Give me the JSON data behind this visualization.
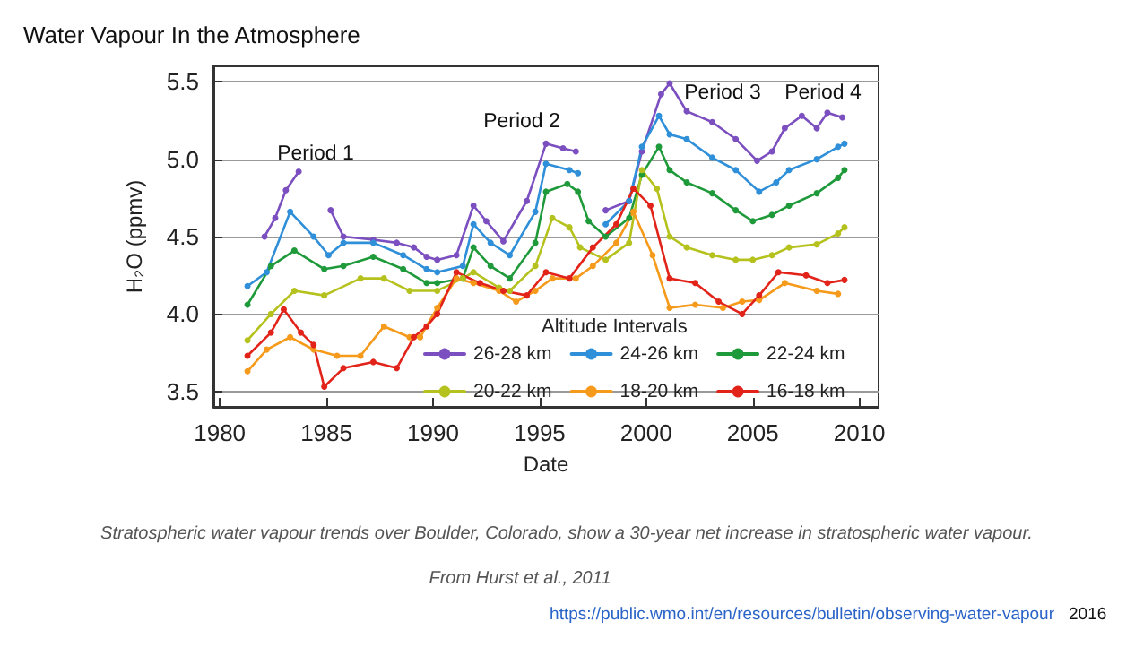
{
  "chart_data": {
    "type": "line",
    "title": "Water Vapour In the Atmosphere",
    "xlabel": "Date",
    "ylabel": "H₂O (ppmv)",
    "legend_title": "Altitude Intervals",
    "xlim": [
      1979.7,
      2010.9
    ],
    "xticks": [
      1980,
      1985,
      1990,
      1995,
      2000,
      2005,
      2010
    ],
    "ylim": [
      3.4,
      5.6
    ],
    "yticks": [
      3.5,
      {
        "value": 4,
        "label": "4.0"
      },
      4.5,
      {
        "value": 5,
        "label": "5.0"
      },
      5.5
    ],
    "grid": "y",
    "legend": "bottom",
    "marker": "circle",
    "line_style": "solid",
    "series": [
      {
        "name": "26-28 km",
        "color": "#7b4fc0",
        "x": [
          1982.1,
          1982.6,
          1983.1,
          1983.7,
          null,
          1985.2,
          1985.8,
          1987.2,
          1988.3,
          1989.1,
          1989.7,
          1990.2,
          1991.1,
          1991.9,
          1992.5,
          1993.3,
          1994.4,
          1995.3,
          1996.1,
          1996.7,
          null,
          1998.1,
          1999.2,
          1999.8,
          2000.7,
          2001.1,
          2001.9,
          2003.1,
          2004.2,
          2005.2,
          2005.9,
          2006.5,
          2007.3,
          2008.0,
          2008.5,
          2009.2
        ],
        "values": [
          4.5,
          4.62,
          4.8,
          4.92,
          null,
          4.67,
          4.5,
          4.48,
          4.46,
          4.43,
          4.37,
          4.35,
          4.38,
          4.7,
          4.6,
          4.47,
          4.73,
          5.1,
          5.07,
          5.05,
          null,
          4.67,
          4.73,
          5.05,
          5.42,
          5.49,
          5.31,
          5.24,
          5.13,
          4.99,
          5.05,
          5.2,
          5.28,
          5.2,
          5.3,
          5.27
        ]
      },
      {
        "name": "24-26 km",
        "color": "#2f8fd8",
        "x": [
          1981.3,
          1982.2,
          1983.3,
          1984.4,
          1985.1,
          1985.8,
          1987.2,
          1988.6,
          1989.7,
          1990.2,
          1991.4,
          1991.9,
          1992.7,
          1993.6,
          1994.8,
          1995.3,
          1996.4,
          1996.8,
          null,
          1998.1,
          1999.2,
          1999.8,
          2000.6,
          2001.1,
          2001.9,
          2003.1,
          2004.2,
          2005.3,
          2006.1,
          2006.7,
          2008.0,
          2009.0,
          2009.3
        ],
        "values": [
          4.18,
          4.27,
          4.66,
          4.5,
          4.38,
          4.46,
          4.46,
          4.38,
          4.29,
          4.27,
          4.31,
          4.58,
          4.46,
          4.38,
          4.66,
          4.97,
          4.93,
          4.91,
          null,
          4.58,
          4.73,
          5.08,
          5.28,
          5.16,
          5.13,
          5.01,
          4.93,
          4.79,
          4.85,
          4.93,
          5.0,
          5.08,
          5.1
        ]
      },
      {
        "name": "22-24 km",
        "color": "#1f9a3a",
        "x": [
          1981.3,
          1982.4,
          1983.5,
          1984.9,
          1985.8,
          1987.2,
          1988.6,
          1989.7,
          1990.2,
          1991.4,
          1991.9,
          1992.7,
          1993.6,
          1994.8,
          1995.3,
          1996.3,
          1996.8,
          1997.3,
          1998.1,
          1999.2,
          1999.8,
          2000.6,
          2001.1,
          2001.9,
          2003.1,
          2004.2,
          2005.0,
          2005.9,
          2006.7,
          2008.0,
          2009.0,
          2009.3
        ],
        "values": [
          4.06,
          4.31,
          4.41,
          4.29,
          4.31,
          4.37,
          4.29,
          4.2,
          4.2,
          4.23,
          4.43,
          4.31,
          4.23,
          4.46,
          4.79,
          4.84,
          4.79,
          4.6,
          4.5,
          4.62,
          4.9,
          5.08,
          4.93,
          4.85,
          4.78,
          4.67,
          4.6,
          4.64,
          4.7,
          4.78,
          4.88,
          4.93
        ]
      },
      {
        "name": "20-22 km",
        "color": "#b5c21e",
        "x": [
          1981.3,
          1982.4,
          1983.5,
          1984.9,
          1986.6,
          1987.7,
          1988.9,
          1990.2,
          1991.4,
          1991.9,
          1993.1,
          1993.6,
          1994.8,
          1995.6,
          1996.4,
          1996.9,
          1998.1,
          1999.2,
          1999.8,
          2000.5,
          2001.1,
          2001.9,
          2003.1,
          2004.2,
          2005.0,
          2005.9,
          2006.7,
          2008.0,
          2009.0,
          2009.3
        ],
        "values": [
          3.83,
          4.0,
          4.15,
          4.12,
          4.23,
          4.23,
          4.15,
          4.15,
          4.23,
          4.27,
          4.17,
          4.15,
          4.31,
          4.62,
          4.56,
          4.43,
          4.35,
          4.46,
          4.93,
          4.81,
          4.5,
          4.43,
          4.38,
          4.35,
          4.35,
          4.38,
          4.43,
          4.45,
          4.52,
          4.56
        ]
      },
      {
        "name": "18-20 km",
        "color": "#f59a1b",
        "x": [
          1981.3,
          1982.2,
          1983.3,
          1984.4,
          1985.5,
          1986.6,
          1987.7,
          1988.9,
          1989.4,
          1990.2,
          1991.1,
          1991.9,
          1993.1,
          1993.9,
          1994.8,
          1995.6,
          1996.7,
          1997.5,
          1998.6,
          1999.4,
          2000.3,
          2001.1,
          2002.3,
          2003.6,
          2004.5,
          2005.3,
          2006.5,
          2008.0,
          2009.0
        ],
        "values": [
          3.63,
          3.77,
          3.85,
          3.77,
          3.73,
          3.73,
          3.92,
          3.85,
          3.85,
          4.04,
          4.23,
          4.2,
          4.15,
          4.08,
          4.15,
          4.23,
          4.23,
          4.31,
          4.46,
          4.66,
          4.38,
          4.04,
          4.06,
          4.04,
          4.08,
          4.09,
          4.2,
          4.15,
          4.13
        ]
      },
      {
        "name": "16-18 km",
        "color": "#e2231a",
        "x": [
          1981.3,
          1982.4,
          1983.0,
          1983.8,
          1984.4,
          1984.9,
          1985.8,
          1987.2,
          1988.3,
          1989.1,
          1989.7,
          1990.2,
          1991.1,
          1992.2,
          1993.3,
          1994.4,
          1995.3,
          1996.4,
          1997.5,
          1998.6,
          1999.4,
          2000.2,
          2001.1,
          2002.3,
          2003.4,
          2004.5,
          2005.3,
          2006.2,
          2007.5,
          2008.5,
          2009.3
        ],
        "values": [
          3.73,
          3.88,
          4.03,
          3.88,
          3.8,
          3.53,
          3.65,
          3.69,
          3.65,
          3.85,
          3.92,
          4.0,
          4.27,
          4.2,
          4.15,
          4.12,
          4.27,
          4.23,
          4.43,
          4.58,
          4.81,
          4.7,
          4.23,
          4.2,
          4.08,
          4.0,
          4.12,
          4.27,
          4.25,
          4.2,
          4.22
        ]
      }
    ],
    "annotations": [
      "Period 1",
      "Period 2",
      "Period 3",
      "Period 4",
      "Stratospheric water vapour trends over Boulder, Colorado, show a 30-year net increase in stratospheric water vapour.",
      "From Hurst et al., 2011",
      "https://public.wmo.int/en/resources/bulletin/observing-water-vapour",
      "2016"
    ]
  }
}
